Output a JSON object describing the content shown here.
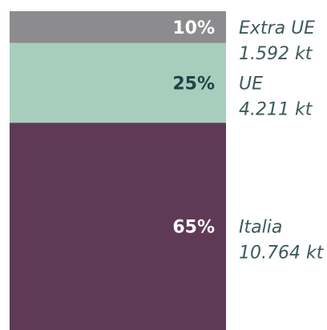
{
  "chart_data": {
    "type": "bar",
    "stacked": true,
    "orientation": "vertical",
    "categories": [
      ""
    ],
    "series": [
      {
        "name": "Extra UE",
        "values": [
          10
        ],
        "percent_label": "10%",
        "amount_label": "1.592 kt",
        "color": "#8c8b8d",
        "text_color": "#ffffff"
      },
      {
        "name": "UE",
        "values": [
          25
        ],
        "percent_label": "25%",
        "amount_label": "4.211 kt",
        "color": "#a7cebd",
        "text_color": "#234048"
      },
      {
        "name": "Italia",
        "values": [
          65
        ],
        "percent_label": "65%",
        "amount_label": "10.764 kt",
        "color": "#5e3a57",
        "text_color": "#ffffff"
      }
    ],
    "ylim": [
      0,
      100
    ],
    "title": "",
    "xlabel": "",
    "ylabel": "",
    "grid": false,
    "legend": "right"
  }
}
